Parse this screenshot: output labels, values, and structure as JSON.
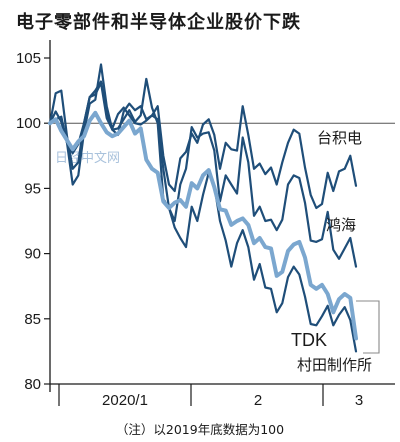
{
  "chart_data": {
    "type": "line",
    "title": "电子零部件和半导体企业股价下跌",
    "note": "（注）以2019年底数据为100",
    "watermark": "日经中文网",
    "ylim": [
      80,
      105
    ],
    "yticks": [
      80,
      85,
      90,
      95,
      100,
      105
    ],
    "reference_line": 100,
    "x_month_labels": [
      "2020/1",
      "2",
      "3"
    ],
    "grid": false,
    "series": [
      {
        "name": "台积电",
        "color": "#1f4e79",
        "values": [
          100,
          102.3,
          102.5,
          99,
          96.5,
          97,
          100,
          102,
          102.5,
          103.2,
          100.8,
          99.6,
          100.7,
          101.2,
          100.6,
          100,
          99.9,
          100.2,
          100.6,
          101.3,
          97.5,
          95.3,
          94.8,
          97.3,
          97.8,
          99.2,
          98.5,
          99.9,
          100.3,
          99.1,
          96.5,
          98.5,
          98,
          97.9,
          101.3,
          99.1,
          96.5,
          96.9,
          96.1,
          96.6,
          95.3,
          97,
          98.5,
          99.5,
          99.2,
          96.6,
          94.5,
          93.5,
          93.8,
          96.2,
          94.8,
          96.3,
          96.5,
          97.5,
          95.2
        ]
      },
      {
        "name": "鸿海",
        "color": "#1f4e79",
        "values": [
          100,
          100.3,
          100.5,
          98.5,
          95.3,
          96,
          99.3,
          101.5,
          101.8,
          104.5,
          101.3,
          99.5,
          99.1,
          100.9,
          101.5,
          101,
          101.3,
          100.3,
          100.6,
          100.3,
          96.5,
          93.5,
          92.5,
          95.3,
          96.5,
          99.7,
          98.9,
          99.2,
          99.3,
          97.9,
          94,
          96,
          95.3,
          94.6,
          98.9,
          97,
          92.9,
          93.6,
          92.5,
          92.6,
          91.8,
          92.6,
          95.3,
          96,
          95.8,
          93.9,
          91,
          90.9,
          91.1,
          93.2,
          90.3,
          89.6,
          90.4,
          91.2,
          89
        ]
      },
      {
        "name": "TDK",
        "color": "#1f4e79",
        "values": [
          100,
          100.9,
          100.1,
          98.5,
          97.7,
          98.4,
          100,
          102,
          102.2,
          103.1,
          100.4,
          99.5,
          99.6,
          100.3,
          101,
          100.1,
          100.6,
          103.4,
          101.2,
          100,
          94.2,
          93.5,
          92,
          91.2,
          90.5,
          93.6,
          92.5,
          94.5,
          96.2,
          95.2,
          92.5,
          91,
          89,
          90.8,
          91.8,
          90.5,
          88,
          89.2,
          87.4,
          87.3,
          85.5,
          86.2,
          88.2,
          89,
          88.4,
          86.7,
          84.6,
          84.5,
          85.2,
          86,
          84.5,
          85.3,
          85.9,
          84.9,
          82.5
        ]
      },
      {
        "name": "村田制作所",
        "color": "#7ba7cf",
        "values": [
          100,
          100.3,
          99.4,
          98.7,
          98,
          98.6,
          99,
          100.2,
          100.8,
          100,
          99.3,
          99,
          99.2,
          99.7,
          100.2,
          99.2,
          99.6,
          97.2,
          96.5,
          96.2,
          94,
          93.5,
          93.9,
          94.1,
          93.6,
          95.4,
          95,
          96,
          96.4,
          95.1,
          93.4,
          93.3,
          92.2,
          92.5,
          92.7,
          92.2,
          90.8,
          91.2,
          90.5,
          90.4,
          88.3,
          88.6,
          90.2,
          90.7,
          90.9,
          89.7,
          87.6,
          87.3,
          87.6,
          86.9,
          85.5,
          86.5,
          86.9,
          86.6,
          83.5
        ]
      }
    ]
  }
}
